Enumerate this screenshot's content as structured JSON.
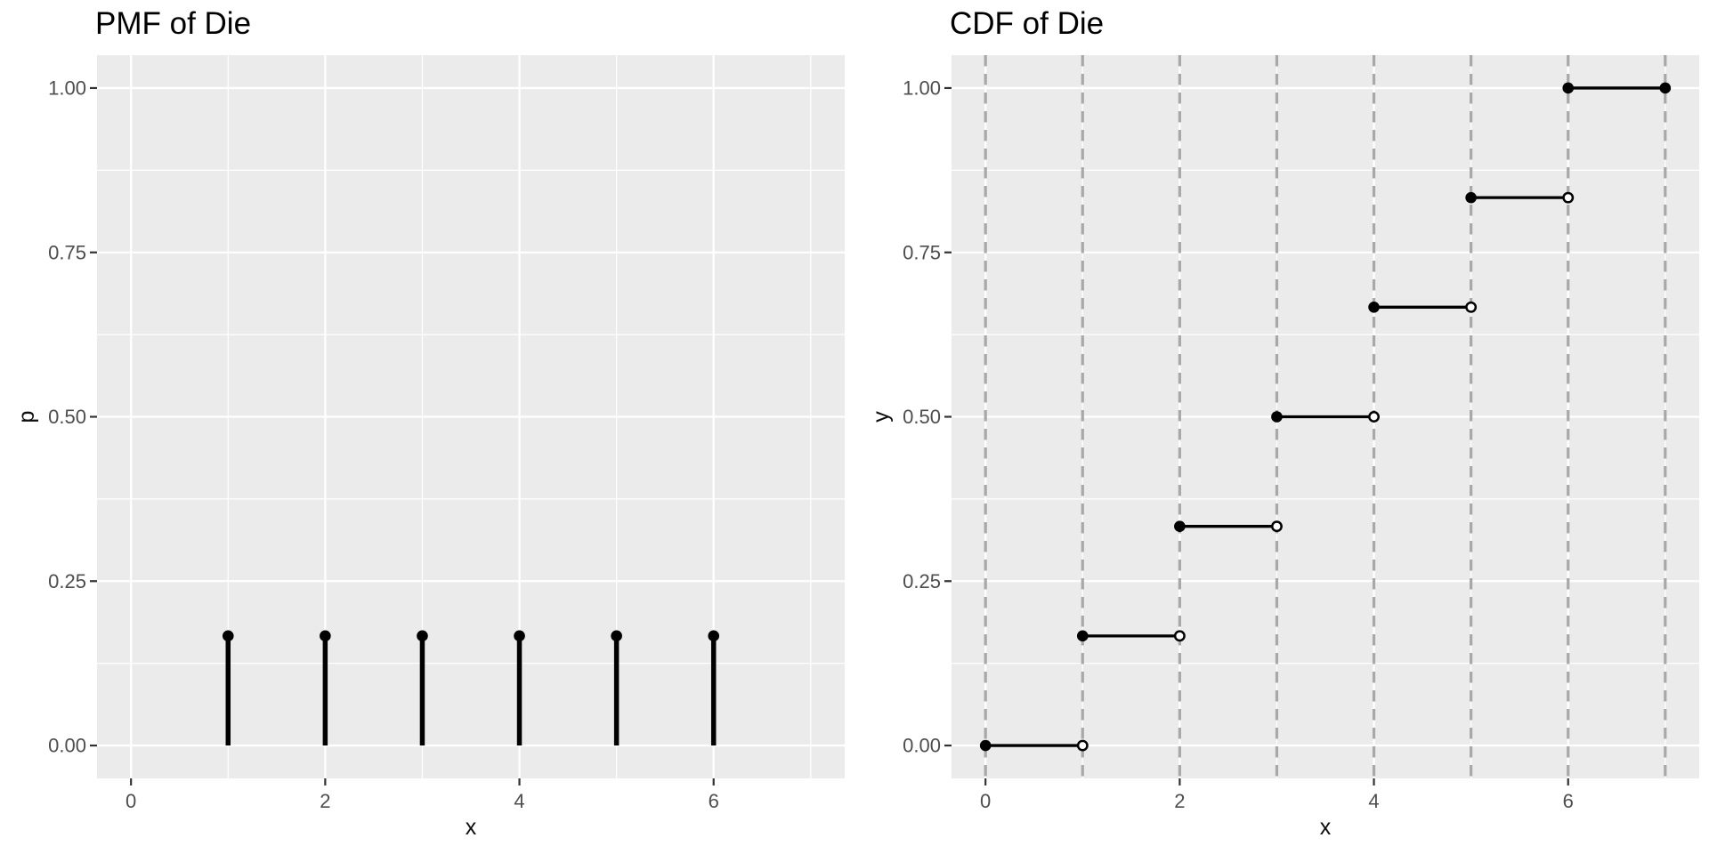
{
  "colors": {
    "page_background": "#ffffff",
    "panel_background": "#ebebeb",
    "grid_major": "#ffffff",
    "grid_minor": "#ffffff",
    "dashed_vline": "#a8a8a8",
    "tick_mark": "#333333",
    "tick_label": "#4d4d4d",
    "axis_title": "#0d0d0d",
    "plot_title": "#000000",
    "mark_stroke": "#000000",
    "closed_point_fill": "#000000",
    "open_point_fill": "#ffffff"
  },
  "chart_data": [
    {
      "type": "bar",
      "subtype": "stem-pmf",
      "title": "PMF of Die",
      "xlabel": "x",
      "ylabel": "p",
      "xlim": [
        0,
        7
      ],
      "ylim": [
        0,
        1
      ],
      "x_tick_values": [
        0,
        2,
        4,
        6
      ],
      "x_tick_labels": [
        "0",
        "2",
        "4",
        "6"
      ],
      "y_tick_values": [
        0.0,
        0.25,
        0.5,
        0.75,
        1.0
      ],
      "y_tick_labels": [
        "0.00",
        "0.25",
        "0.50",
        "0.75",
        "1.00"
      ],
      "x_minor_values": [
        1,
        3,
        5,
        7
      ],
      "y_minor_values": [
        0.125,
        0.375,
        0.625,
        0.875
      ],
      "grid": true,
      "legend": "none",
      "categories": [
        1,
        2,
        3,
        4,
        5,
        6
      ],
      "values": [
        0.1667,
        0.1667,
        0.1667,
        0.1667,
        0.1667,
        0.1667
      ],
      "points": [
        {
          "x": 1,
          "p": 0.1667
        },
        {
          "x": 2,
          "p": 0.1667
        },
        {
          "x": 3,
          "p": 0.1667
        },
        {
          "x": 4,
          "p": 0.1667
        },
        {
          "x": 5,
          "p": 0.1667
        },
        {
          "x": 6,
          "p": 0.1667
        }
      ]
    },
    {
      "type": "line",
      "subtype": "step-cdf",
      "title": "CDF of Die",
      "xlabel": "x",
      "ylabel": "y",
      "xlim": [
        0,
        7
      ],
      "ylim": [
        0,
        1
      ],
      "x_tick_values": [
        0,
        2,
        4,
        6
      ],
      "x_tick_labels": [
        "0",
        "2",
        "4",
        "6"
      ],
      "y_tick_values": [
        0.0,
        0.25,
        0.5,
        0.75,
        1.0
      ],
      "y_tick_labels": [
        "0.00",
        "0.25",
        "0.50",
        "0.75",
        "1.00"
      ],
      "x_minor_values": [
        1,
        3,
        5,
        7
      ],
      "y_minor_values": [
        0.125,
        0.375,
        0.625,
        0.875
      ],
      "grid": true,
      "legend": "none",
      "dashed_vlines_x": [
        0,
        1,
        2,
        3,
        4,
        5,
        6,
        7
      ],
      "steps": [
        {
          "x_from": 0,
          "x_to": 1,
          "y": 0.0,
          "left_end": "closed",
          "right_end": "open"
        },
        {
          "x_from": 1,
          "x_to": 2,
          "y": 0.1667,
          "left_end": "closed",
          "right_end": "open"
        },
        {
          "x_from": 2,
          "x_to": 3,
          "y": 0.3333,
          "left_end": "closed",
          "right_end": "open"
        },
        {
          "x_from": 3,
          "x_to": 4,
          "y": 0.5,
          "left_end": "closed",
          "right_end": "open"
        },
        {
          "x_from": 4,
          "x_to": 5,
          "y": 0.6667,
          "left_end": "closed",
          "right_end": "open"
        },
        {
          "x_from": 5,
          "x_to": 6,
          "y": 0.8333,
          "left_end": "closed",
          "right_end": "open"
        },
        {
          "x_from": 6,
          "x_to": 7,
          "y": 1.0,
          "left_end": "closed",
          "right_end": "closed"
        }
      ]
    }
  ]
}
